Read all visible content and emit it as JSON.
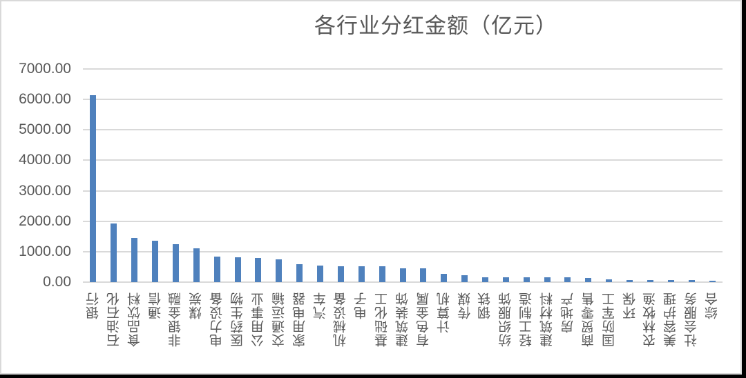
{
  "chart_data": {
    "type": "bar",
    "title": "各行业分红金额（亿元）",
    "xlabel": "",
    "ylabel": "",
    "ylim": [
      0,
      7000
    ],
    "yticks": [
      "0.00",
      "1000.00",
      "2000.00",
      "3000.00",
      "4000.00",
      "5000.00",
      "6000.00",
      "7000.00"
    ],
    "grid": true,
    "legend": null,
    "bar_color": "#4f81bd",
    "categories": [
      "银行",
      "石油石化",
      "食品饮料",
      "通信",
      "非银金融",
      "煤炭",
      "电力设备",
      "医药生物",
      "公用事业",
      "交通运输",
      "家用电器",
      "汽车",
      "机械设备",
      "电子",
      "基础化工",
      "建筑装饰",
      "有色金属",
      "计算机",
      "传媒",
      "钢铁",
      "纺织服饰",
      "轻工制造",
      "建筑材料",
      "房地产",
      "商贸零售",
      "国防军工",
      "环保",
      "农林牧渔",
      "美容护理",
      "社会服务",
      "综合"
    ],
    "values": [
      6140,
      1920,
      1450,
      1360,
      1250,
      1100,
      840,
      810,
      785,
      755,
      580,
      545,
      515,
      515,
      515,
      455,
      455,
      275,
      220,
      160,
      160,
      160,
      160,
      160,
      130,
      100,
      75,
      75,
      75,
      75,
      40
    ]
  }
}
